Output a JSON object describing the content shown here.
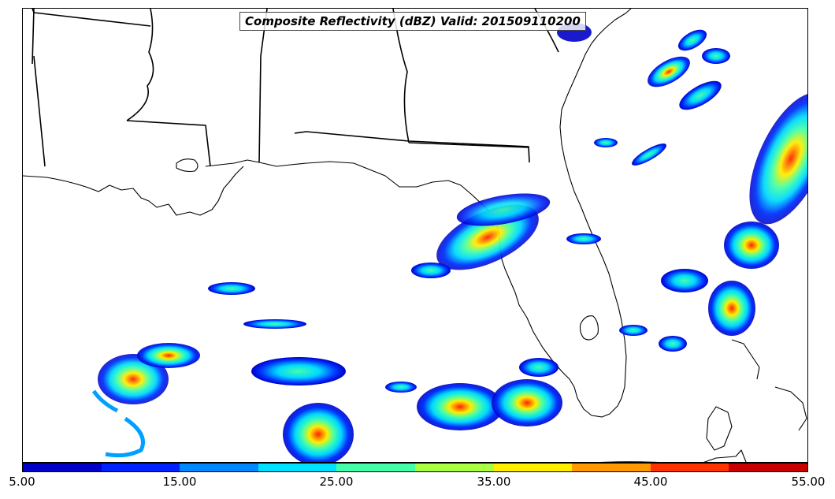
{
  "map": {
    "title": "Composite Reflectivity (dBZ) Valid: 201509110200",
    "variable": "Composite Reflectivity",
    "units": "dBZ",
    "valid_time": "201509110200",
    "region": "U.S. Gulf Coast and Florida",
    "border_color": "#000000",
    "background_color": "#ffffff"
  },
  "colorbar": {
    "min": 5.0,
    "max": 55.0,
    "tick_labels": [
      "5.00",
      "15.00",
      "25.00",
      "35.00",
      "45.00",
      "55.00"
    ],
    "colors": [
      "#0000c8",
      "#0022ff",
      "#0088ff",
      "#00e0ff",
      "#44ffaa",
      "#aaff44",
      "#ffee00",
      "#ff9900",
      "#ff3300",
      "#c80000"
    ]
  }
}
